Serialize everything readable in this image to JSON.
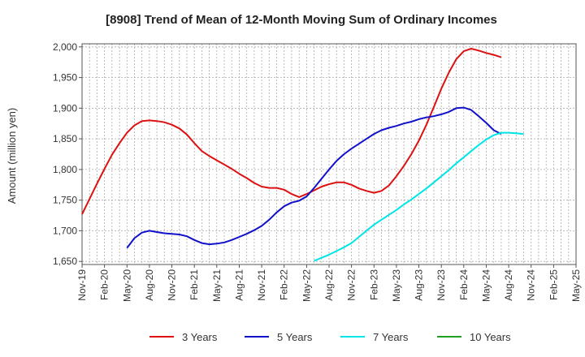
{
  "chart_data": {
    "type": "line",
    "title": "[8908]  Trend of Mean of 12-Month Moving Sum of Ordinary Incomes",
    "xlabel": "",
    "ylabel": "Amount (million yen)",
    "ylim": [
      1645,
      2005
    ],
    "yticks": [
      1650,
      1700,
      1750,
      1800,
      1850,
      1900,
      1950,
      2000
    ],
    "ytick_labels": [
      "1,650",
      "1,700",
      "1,750",
      "1,800",
      "1,850",
      "1,900",
      "1,950",
      "2,000"
    ],
    "x_start": "Nov-19",
    "x_months_total": 66,
    "xtick_labels": [
      "Nov-19",
      "Feb-20",
      "May-20",
      "Aug-20",
      "Nov-20",
      "Feb-21",
      "May-21",
      "Aug-21",
      "Nov-21",
      "Feb-22",
      "May-22",
      "Aug-22",
      "Nov-22",
      "Feb-23",
      "May-23",
      "Aug-23",
      "Nov-23",
      "Feb-24",
      "May-24",
      "Aug-24",
      "Nov-24",
      "Feb-25",
      "May-25"
    ],
    "grid": true,
    "series": [
      {
        "name": "3 Years",
        "color": "#dd1111",
        "start_index": 0,
        "values": [
          1727,
          1752,
          1777,
          1801,
          1824,
          1843,
          1860,
          1872,
          1879,
          1880,
          1879,
          1877,
          1873,
          1867,
          1857,
          1843,
          1830,
          1822,
          1815,
          1808,
          1801,
          1793,
          1786,
          1778,
          1772,
          1770,
          1770,
          1767,
          1760,
          1755,
          1760,
          1766,
          1772,
          1776,
          1779,
          1779,
          1775,
          1769,
          1765,
          1762,
          1765,
          1774,
          1789,
          1806,
          1825,
          1847,
          1873,
          1902,
          1932,
          1958,
          1980,
          1993,
          1997,
          1994,
          1990,
          1987,
          1983
        ]
      },
      {
        "name": "5 Years",
        "color": "#1111cc",
        "start_index": 6,
        "values": [
          1672,
          1688,
          1697,
          1700,
          1698,
          1696,
          1695,
          1694,
          1691,
          1685,
          1680,
          1678,
          1679,
          1681,
          1685,
          1690,
          1695,
          1701,
          1708,
          1718,
          1730,
          1740,
          1746,
          1749,
          1756,
          1770,
          1785,
          1800,
          1814,
          1825,
          1834,
          1842,
          1850,
          1858,
          1864,
          1868,
          1871,
          1875,
          1878,
          1882,
          1885,
          1887,
          1890,
          1894,
          1900,
          1901,
          1897,
          1887,
          1876,
          1864,
          1858
        ]
      },
      {
        "name": "7 Years",
        "color": "#00e5e5",
        "start_index": 31,
        "values": [
          1651,
          1656,
          1661,
          1667,
          1673,
          1680,
          1690,
          1700,
          1710,
          1718,
          1726,
          1734,
          1743,
          1751,
          1760,
          1769,
          1779,
          1789,
          1799,
          1810,
          1820,
          1830,
          1840,
          1849,
          1856,
          1860,
          1860,
          1859,
          1858
        ]
      },
      {
        "name": "10 Years",
        "color": "#22a022",
        "start_index": 0,
        "values": []
      }
    ]
  }
}
